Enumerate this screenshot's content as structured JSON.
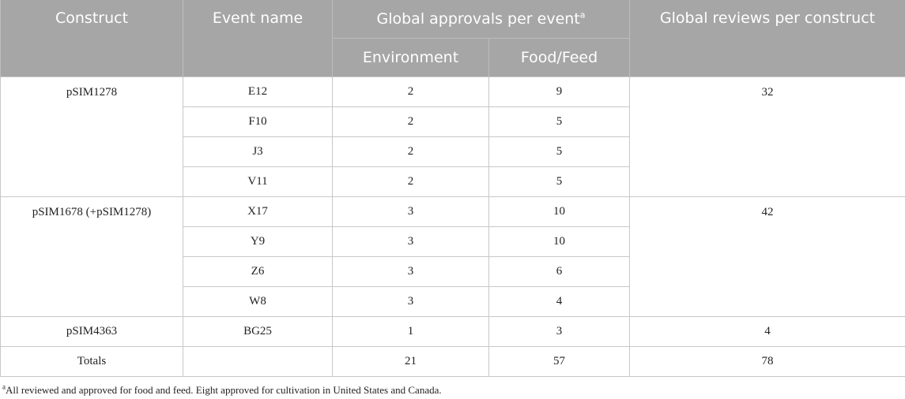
{
  "header": {
    "construct": "Construct",
    "event_name": "Event name",
    "approvals": "Global approvals per event",
    "approvals_note_mark": "a",
    "reviews": "Global reviews per construct",
    "environment": "Environment",
    "food_feed": "Food/Feed"
  },
  "rows": [
    {
      "event": "E12",
      "env": "2",
      "food": "9"
    },
    {
      "event": "F10",
      "env": "2",
      "food": "5"
    },
    {
      "event": "J3",
      "env": "2",
      "food": "5"
    },
    {
      "event": "V11",
      "env": "2",
      "food": "5"
    },
    {
      "event": "X17",
      "env": "3",
      "food": "10"
    },
    {
      "event": "Y9",
      "env": "3",
      "food": "10"
    },
    {
      "event": "Z6",
      "env": "3",
      "food": "6"
    },
    {
      "event": "W8",
      "env": "3",
      "food": "4"
    },
    {
      "event": "BG25",
      "env": "1",
      "food": "3"
    }
  ],
  "groups": [
    {
      "construct": "pSIM1278",
      "reviews": "32"
    },
    {
      "construct": "pSIM1678 (+pSIM1278)",
      "reviews": "42"
    },
    {
      "construct": "pSIM4363",
      "reviews": "4"
    }
  ],
  "totals": {
    "label": "Totals",
    "env": "21",
    "food": "57",
    "reviews": "78"
  },
  "footnote": {
    "mark": "a",
    "text": "All reviewed and approved for food and feed. Eight approved for cultivation in United States and Canada."
  }
}
